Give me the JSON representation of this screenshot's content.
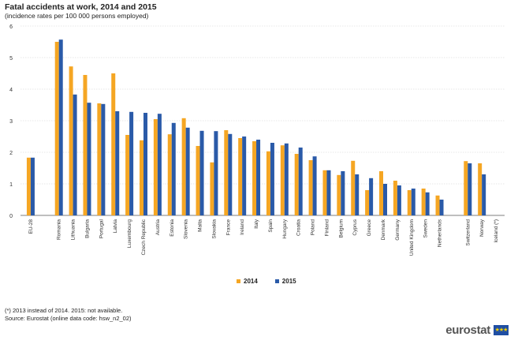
{
  "chart_data": {
    "type": "bar",
    "title": "Fatal accidents at work, 2014 and 2015",
    "subtitle": "(incidence rates per 100 000 persons employed)",
    "ylim": [
      0,
      6
    ],
    "yticks": [
      "0",
      "1",
      "2",
      "3",
      "4",
      "5",
      "6"
    ],
    "grid": true,
    "legend_position": "bottom",
    "categories": [
      "EU-28",
      "Romania",
      "Lithuania",
      "Bulgaria",
      "Portugal",
      "Latvia",
      "Luxembourg",
      "Czech Republic",
      "Austria",
      "Estonia",
      "Slovenia",
      "Malta",
      "Slovakia",
      "France",
      "Ireland",
      "Italy",
      "Spain",
      "Hungary",
      "Croatia",
      "Poland",
      "Finland",
      "Belgium",
      "Cyprus",
      "Greece",
      "Denmark",
      "Germany",
      "United Kingdom",
      "Sweden",
      "Netherlands",
      "Switzerland",
      "Norway",
      "Iceland (*)"
    ],
    "series": [
      {
        "name": "2014",
        "color": "#f5a623",
        "values": [
          1.83,
          5.5,
          4.72,
          4.45,
          3.55,
          4.5,
          2.55,
          2.38,
          3.05,
          2.57,
          3.08,
          2.2,
          1.68,
          2.7,
          2.45,
          2.35,
          2.03,
          2.22,
          1.95,
          1.75,
          1.43,
          1.28,
          1.73,
          0.8,
          1.4,
          1.1,
          0.8,
          0.85,
          0.63,
          1.72,
          1.65,
          null
        ]
      },
      {
        "name": "2015",
        "color": "#2a5aa8",
        "values": [
          1.83,
          5.57,
          3.83,
          3.57,
          3.53,
          3.3,
          3.28,
          3.25,
          3.22,
          2.93,
          2.78,
          2.68,
          2.67,
          2.58,
          2.5,
          2.4,
          2.3,
          2.28,
          2.15,
          1.87,
          1.43,
          1.4,
          1.3,
          1.18,
          1.0,
          0.95,
          0.85,
          0.73,
          0.5,
          1.65,
          1.3,
          null
        ]
      }
    ]
  },
  "footer": {
    "note": "(*) 2013 instead of 2014. 2015: not available.",
    "source": "Source:  Eurostat (online data code: hsw_n2_02)",
    "logo_text": "eurostat",
    "flag_stars": "★★★"
  }
}
